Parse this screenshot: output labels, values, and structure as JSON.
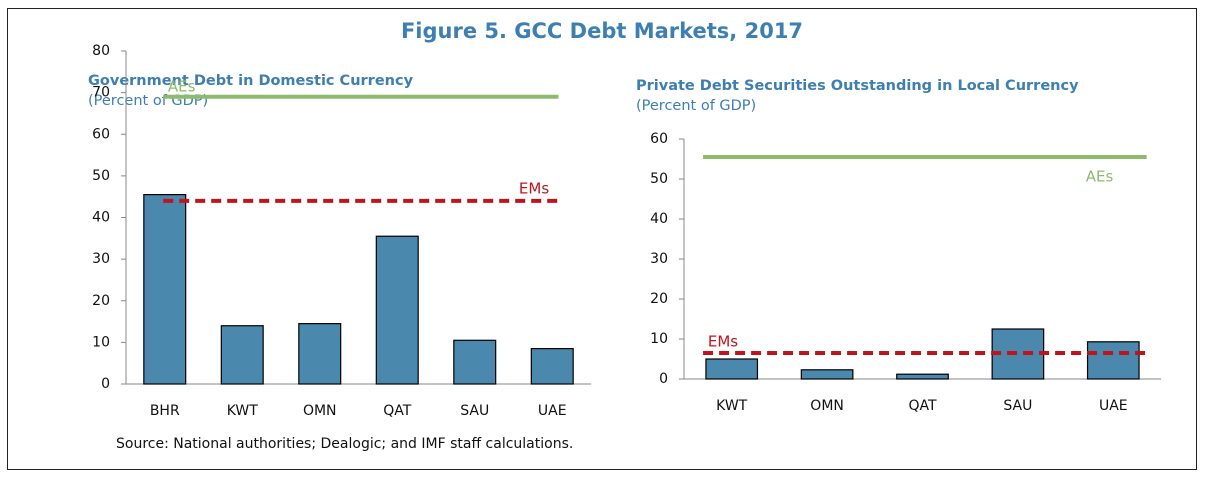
{
  "figure_title": "Figure 5. GCC Debt Markets, 2017",
  "source": "Source: National authorities; Dealogic; and IMF staff calculations.",
  "chart_data": [
    {
      "type": "bar",
      "title": "Government Debt in Domestic Currency",
      "subtitle": "(Percent of GDP)",
      "categories": [
        "BHR",
        "KWT",
        "OMN",
        "QAT",
        "SAU",
        "UAE"
      ],
      "values": [
        45.5,
        14,
        14.5,
        35.5,
        10.5,
        8.5
      ],
      "color": "#4a88ad",
      "ylim": [
        0,
        80
      ],
      "yticks": [
        0,
        10,
        20,
        30,
        40,
        50,
        60,
        70,
        80
      ],
      "reference_lines": [
        {
          "name": "AEs",
          "value": 69,
          "color": "#8dbb6c",
          "style": "solid"
        },
        {
          "name": "EMs",
          "value": 44,
          "color": "#c0141c",
          "style": "dashed"
        }
      ]
    },
    {
      "type": "bar",
      "title": "Private Debt Securities Outstanding in Local Currency",
      "subtitle": "(Percent of GDP)",
      "categories": [
        "KWT",
        "OMN",
        "QAT",
        "SAU",
        "UAE"
      ],
      "values": [
        5,
        2.3,
        1.2,
        12.5,
        9.3
      ],
      "color": "#4a88ad",
      "ylim": [
        0,
        60
      ],
      "yticks": [
        0,
        10,
        20,
        30,
        40,
        50,
        60
      ],
      "reference_lines": [
        {
          "name": "AEs",
          "value": 55.5,
          "color": "#8dbb6c",
          "style": "solid"
        },
        {
          "name": "EMs",
          "value": 6.5,
          "color": "#c0141c",
          "style": "dashed"
        }
      ]
    }
  ]
}
